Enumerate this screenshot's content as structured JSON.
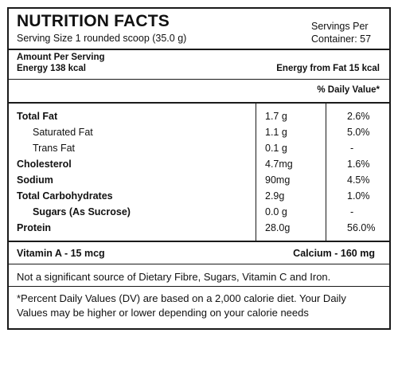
{
  "header": {
    "title": "NUTRITION FACTS",
    "serving_size": "Serving Size 1 rounded scoop (35.0 g)",
    "servings_per_line1": "Servings Per",
    "servings_per_line2": "Container: 57"
  },
  "summary": {
    "amount_per_serving": "Amount Per Serving",
    "energy": "Energy 138 kcal",
    "energy_from_fat": "Energy from Fat 15 kcal",
    "daily_value_header": "% Daily Value*"
  },
  "nutrients": [
    {
      "name": "Total Fat",
      "amount": "1.7 g",
      "dv": "2.6%"
    },
    {
      "name": "Saturated Fat",
      "amount": "1.1 g",
      "dv": "5.0%"
    },
    {
      "name": "Trans Fat",
      "amount": "0.1 g",
      "dv": "-"
    },
    {
      "name": "Cholesterol",
      "amount": "4.7mg",
      "dv": "1.6%"
    },
    {
      "name": "Sodium",
      "amount": "90mg",
      "dv": "4.5%"
    },
    {
      "name": "Total Carbohydrates",
      "amount": "2.9g",
      "dv": "1.0%"
    },
    {
      "name": "Sugars (As Sucrose)",
      "amount": "0.0 g",
      "dv": "-"
    },
    {
      "name": "Protein",
      "amount": "28.0g",
      "dv": "56.0%"
    }
  ],
  "vitamins": {
    "vitamin_a": "Vitamin A - 15 mcg",
    "calcium": "Calcium - 160 mg"
  },
  "note": "Not a significant source of Dietary Fibre, Sugars, Vitamin C and Iron.",
  "footnote": {
    "line1": "*Percent Daily Values (DV) are based on a 2,000 calorie diet. Your Daily",
    "line2": "Values may be higher or lower depending on your calorie needs"
  }
}
